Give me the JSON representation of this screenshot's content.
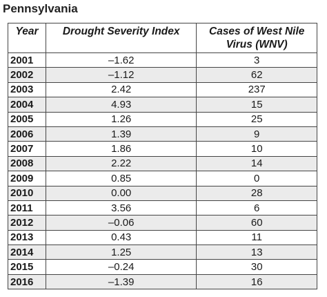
{
  "title": "Pennsylvania",
  "table": {
    "headers": {
      "year": "Year",
      "drought": "Drought Severity Index",
      "wnv": "Cases of West Nile Virus (WNV)"
    },
    "rows": [
      {
        "year": "2001",
        "dsi": "–1.62",
        "wnv": "3"
      },
      {
        "year": "2002",
        "dsi": "–1.12",
        "wnv": "62"
      },
      {
        "year": "2003",
        "dsi": "2.42",
        "wnv": "237"
      },
      {
        "year": "2004",
        "dsi": "4.93",
        "wnv": "15"
      },
      {
        "year": "2005",
        "dsi": "1.26",
        "wnv": "25"
      },
      {
        "year": "2006",
        "dsi": "1.39",
        "wnv": "9"
      },
      {
        "year": "2007",
        "dsi": "1.86",
        "wnv": "10"
      },
      {
        "year": "2008",
        "dsi": "2.22",
        "wnv": "14"
      },
      {
        "year": "2009",
        "dsi": "0.85",
        "wnv": "0"
      },
      {
        "year": "2010",
        "dsi": "0.00",
        "wnv": "28"
      },
      {
        "year": "2011",
        "dsi": "3.56",
        "wnv": "6"
      },
      {
        "year": "2012",
        "dsi": "–0.06",
        "wnv": "60"
      },
      {
        "year": "2013",
        "dsi": "0.43",
        "wnv": "11"
      },
      {
        "year": "2014",
        "dsi": "1.25",
        "wnv": "13"
      },
      {
        "year": "2015",
        "dsi": "–0.24",
        "wnv": "30"
      },
      {
        "year": "2016",
        "dsi": "–1.39",
        "wnv": "16"
      }
    ]
  },
  "colors": {
    "row_alt": "#ebebeb",
    "border": "#444444"
  }
}
